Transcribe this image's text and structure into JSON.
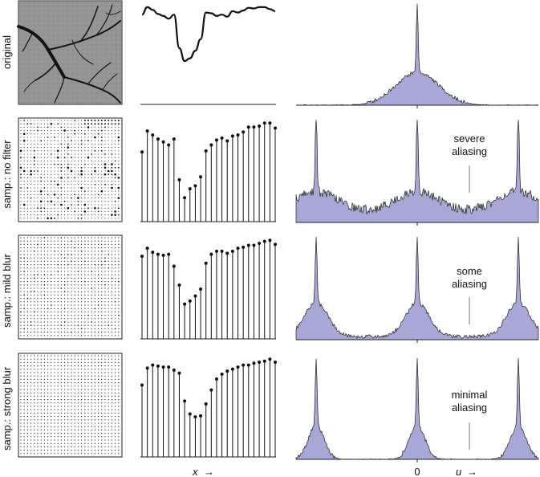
{
  "rows": [
    {
      "label": "original",
      "annotation": []
    },
    {
      "label": "samp.: no filter",
      "annotation": [
        "severe",
        "aliasing"
      ]
    },
    {
      "label": "samp.: mild blur",
      "annotation": [
        "some",
        "aliasing"
      ]
    },
    {
      "label": "samp.: strong blur",
      "annotation": [
        "minimal",
        "aliasing"
      ]
    }
  ],
  "axes": {
    "x_label": "x",
    "u_label": "u",
    "zero_tick": "0",
    "arrow": "→"
  },
  "colors": {
    "spectrum_fill": "#a9a7d6",
    "spectrum_stroke": "#222222",
    "image_background": "#8f8f8f",
    "stem": "#111111"
  },
  "chart_data": [
    {
      "type": "line",
      "panel": "original signal",
      "x": [
        0,
        1,
        2,
        3,
        4,
        5,
        6,
        7,
        8,
        9,
        10,
        11,
        12,
        13,
        14,
        15,
        16,
        17,
        18,
        19,
        20,
        21,
        22,
        23,
        24,
        25
      ],
      "values": [
        0.88,
        0.99,
        0.95,
        0.89,
        0.86,
        0.82,
        0.88,
        0.39,
        0.2,
        0.24,
        0.35,
        0.52,
        0.91,
        0.9,
        0.86,
        0.88,
        0.85,
        0.93,
        0.91,
        0.94,
        0.98,
        0.97,
        0.99,
        0.99,
        0.96,
        0.93
      ],
      "xlabel": "x"
    },
    {
      "type": "bar",
      "panel": "samp.: no filter",
      "x": [
        0,
        1,
        2,
        3,
        4,
        5,
        6,
        7,
        8,
        9,
        10,
        11,
        12,
        13,
        14,
        15,
        16,
        17,
        18,
        19,
        20,
        21,
        22,
        23,
        24,
        25
      ],
      "values": [
        0.7,
        0.91,
        0.87,
        0.83,
        0.8,
        0.77,
        0.83,
        0.42,
        0.24,
        0.33,
        0.36,
        0.45,
        0.71,
        0.77,
        0.82,
        0.84,
        0.81,
        0.86,
        0.87,
        0.9,
        0.95,
        0.95,
        0.96,
        0.99,
        0.99,
        0.94
      ]
    },
    {
      "type": "bar",
      "panel": "samp.: mild blur",
      "x": [
        0,
        1,
        2,
        3,
        4,
        5,
        6,
        7,
        8,
        9,
        10,
        11,
        12,
        13,
        14,
        15,
        16,
        17,
        18,
        19,
        20,
        21,
        22,
        23,
        24,
        25
      ],
      "values": [
        0.83,
        0.91,
        0.87,
        0.85,
        0.84,
        0.85,
        0.73,
        0.54,
        0.35,
        0.38,
        0.43,
        0.5,
        0.76,
        0.85,
        0.88,
        0.88,
        0.86,
        0.88,
        0.91,
        0.92,
        0.94,
        0.94,
        0.96,
        0.98,
        0.99,
        0.95
      ]
    },
    {
      "type": "bar",
      "panel": "samp.: strong blur",
      "x": [
        0,
        1,
        2,
        3,
        4,
        5,
        6,
        7,
        8,
        9,
        10,
        11,
        12,
        13,
        14,
        15,
        16,
        17,
        18,
        19,
        20,
        21,
        22,
        23,
        24,
        25
      ],
      "values": [
        0.73,
        0.9,
        0.93,
        0.92,
        0.91,
        0.91,
        0.88,
        0.85,
        0.57,
        0.44,
        0.41,
        0.42,
        0.54,
        0.68,
        0.79,
        0.84,
        0.87,
        0.89,
        0.91,
        0.93,
        0.93,
        0.95,
        0.96,
        0.97,
        0.99,
        0.96
      ]
    },
    {
      "type": "area",
      "panel": "original spectrum",
      "xlabel": "u",
      "peaks_u": [
        0
      ],
      "peak_height": 1.0,
      "background_width": 0.55,
      "background_height": 0.32,
      "floor": 0.0
    },
    {
      "type": "area",
      "panel": "spectrum: no filter",
      "xlabel": "u",
      "peaks_u": [
        -1,
        0,
        1
      ],
      "peak_height": 0.98,
      "background_width": 0.55,
      "background_height": 0.2,
      "floor": 0.1
    },
    {
      "type": "area",
      "panel": "spectrum: mild blur",
      "xlabel": "u",
      "peaks_u": [
        -1,
        0,
        1
      ],
      "peak_height": 0.98,
      "background_width": 0.3,
      "background_height": 0.33,
      "floor": 0.03
    },
    {
      "type": "area",
      "panel": "spectrum: strong blur",
      "xlabel": "u",
      "peaks_u": [
        -1,
        0,
        1
      ],
      "peak_height": 0.98,
      "background_width": 0.2,
      "background_height": 0.33,
      "floor": 0.0
    }
  ]
}
